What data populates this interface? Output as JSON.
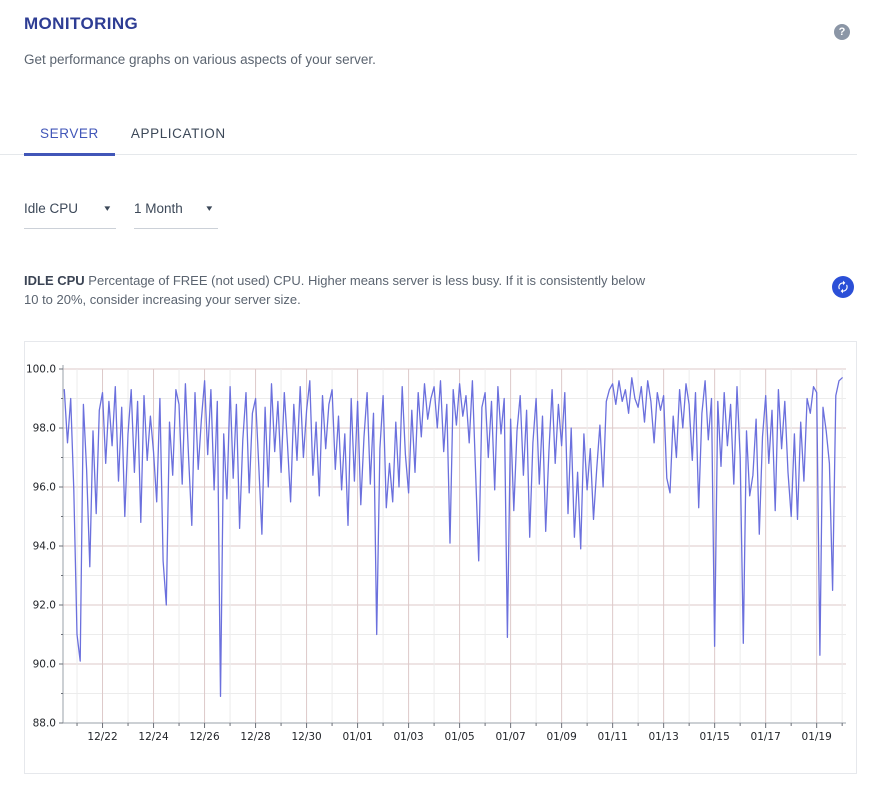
{
  "page": {
    "title": "MONITORING",
    "subtitle": "Get performance graphs on various aspects of your server."
  },
  "icons": {
    "help_glyph": "?",
    "dropdown_caret": "▾"
  },
  "tabs": [
    {
      "label": "SERVER",
      "active": true
    },
    {
      "label": "APPLICATION",
      "active": false
    }
  ],
  "controls": {
    "metric_select": {
      "value": "Idle CPU"
    },
    "period_select": {
      "value": "1 Month"
    }
  },
  "description": {
    "label": "IDLE CPU",
    "text": "Percentage of FREE (not used) CPU. Higher means server is less busy. If it is consistently below 10 to 20%, consider increasing your server size."
  },
  "colors": {
    "title_blue": "#2e3d94",
    "tab_active_blue": "#4156b8",
    "refresh_button_blue": "#2b4fd7",
    "help_icon_gray": "#8b96a6",
    "text_gray": "#5b6470",
    "chart_line": "#6b70dd",
    "grid_major": "#ddc9c9",
    "grid_minor": "#ececec"
  },
  "chart_data": {
    "type": "line",
    "title": "",
    "xlabel": "",
    "ylabel": "",
    "legend": false,
    "grid_on": true,
    "metric": "Idle CPU (%)",
    "period": "1 Month",
    "xlim": [
      -0.55,
      30.15
    ],
    "ylim": [
      88,
      100
    ],
    "x_unit": "days (0 = 12/21)",
    "x_start_day": -0.5,
    "x_step": 0.125,
    "line_color": "#6b70dd",
    "grid": {
      "major": "#ddc9c9",
      "minor": "#ececec",
      "axis": "#9aa0a8",
      "tick": "#6b7078",
      "label": "#23262b"
    },
    "y_ticks": [
      {
        "value": 100,
        "label": "100.0"
      },
      {
        "value": 98,
        "label": "98.0"
      },
      {
        "value": 96,
        "label": "96.0"
      },
      {
        "value": 94,
        "label": "94.0"
      },
      {
        "value": 92,
        "label": "92.0"
      },
      {
        "value": 90,
        "label": "90.0"
      },
      {
        "value": 88,
        "label": "88.0"
      }
    ],
    "x_ticks": [
      {
        "day": 1,
        "label": "12/22"
      },
      {
        "day": 3,
        "label": "12/24"
      },
      {
        "day": 5,
        "label": "12/26"
      },
      {
        "day": 7,
        "label": "12/28"
      },
      {
        "day": 9,
        "label": "12/30"
      },
      {
        "day": 11,
        "label": "01/01"
      },
      {
        "day": 13,
        "label": "01/03"
      },
      {
        "day": 15,
        "label": "01/05"
      },
      {
        "day": 17,
        "label": "01/07"
      },
      {
        "day": 19,
        "label": "01/09"
      },
      {
        "day": 21,
        "label": "01/11"
      },
      {
        "day": 23,
        "label": "01/13"
      },
      {
        "day": 25,
        "label": "01/15"
      },
      {
        "day": 27,
        "label": "01/17"
      },
      {
        "day": 29,
        "label": "01/19"
      }
    ],
    "values": [
      99.3,
      97.5,
      99.0,
      95.9,
      91.0,
      90.1,
      98.8,
      96.6,
      93.3,
      97.9,
      95.1,
      98.6,
      99.2,
      96.8,
      98.9,
      97.4,
      99.4,
      96.2,
      98.7,
      95.0,
      97.8,
      99.3,
      96.5,
      98.9,
      94.8,
      99.1,
      96.9,
      98.4,
      97.2,
      95.5,
      99.0,
      93.5,
      92.0,
      98.2,
      96.4,
      99.3,
      98.8,
      96.1,
      99.5,
      97.0,
      94.7,
      99.2,
      96.6,
      98.3,
      99.6,
      97.1,
      99.3,
      95.9,
      98.9,
      88.9,
      97.8,
      95.6,
      99.4,
      96.3,
      98.8,
      94.6,
      97.6,
      99.2,
      95.8,
      98.5,
      99.0,
      96.7,
      94.4,
      98.7,
      96.0,
      99.5,
      97.2,
      98.9,
      96.5,
      99.2,
      97.5,
      95.5,
      98.8,
      96.9,
      99.4,
      97.0,
      98.6,
      99.6,
      96.4,
      98.2,
      95.7,
      99.1,
      97.3,
      98.8,
      99.3,
      96.6,
      98.4,
      95.9,
      97.8,
      94.7,
      99.0,
      96.2,
      98.9,
      95.4,
      97.7,
      99.2,
      96.1,
      98.5,
      91.0,
      97.3,
      99.1,
      95.3,
      96.8,
      95.5,
      98.2,
      96.0,
      99.4,
      97.1,
      95.8,
      98.6,
      96.5,
      99.2,
      97.7,
      99.5,
      98.3,
      99.0,
      99.4,
      98.0,
      99.6,
      97.2,
      98.8,
      94.1,
      99.3,
      98.1,
      99.5,
      98.4,
      99.1,
      97.5,
      99.6,
      96.6,
      93.5,
      98.7,
      99.2,
      97.0,
      98.9,
      95.9,
      99.4,
      97.8,
      99.0,
      90.9,
      98.3,
      95.2,
      97.9,
      99.1,
      96.4,
      98.6,
      94.3,
      97.5,
      99.0,
      96.1,
      98.4,
      94.5,
      97.2,
      99.3,
      96.8,
      98.8,
      97.4,
      99.2,
      95.1,
      98.0,
      94.3,
      96.5,
      93.9,
      97.8,
      95.9,
      97.3,
      94.9,
      96.6,
      98.1,
      96.0,
      98.9,
      99.3,
      99.5,
      98.8,
      99.6,
      98.9,
      99.3,
      98.5,
      99.7,
      99.0,
      98.7,
      99.4,
      98.2,
      99.6,
      98.9,
      97.5,
      99.2,
      98.6,
      99.1,
      96.3,
      95.8,
      98.4,
      97.0,
      99.3,
      98.0,
      99.5,
      98.8,
      96.9,
      99.2,
      95.3,
      98.5,
      99.6,
      97.6,
      99.0,
      90.6,
      98.9,
      96.7,
      99.2,
      97.4,
      98.8,
      96.1,
      99.4,
      97.0,
      90.7,
      97.9,
      95.7,
      96.4,
      98.3,
      94.4,
      97.7,
      99.1,
      96.8,
      98.6,
      95.2,
      99.3,
      97.3,
      98.9,
      96.5,
      95.0,
      97.8,
      94.9,
      98.2,
      96.2,
      99.0,
      98.5,
      99.4,
      99.2,
      90.3,
      98.7,
      97.9,
      96.8,
      92.5,
      99.1,
      99.6,
      99.7
    ]
  }
}
